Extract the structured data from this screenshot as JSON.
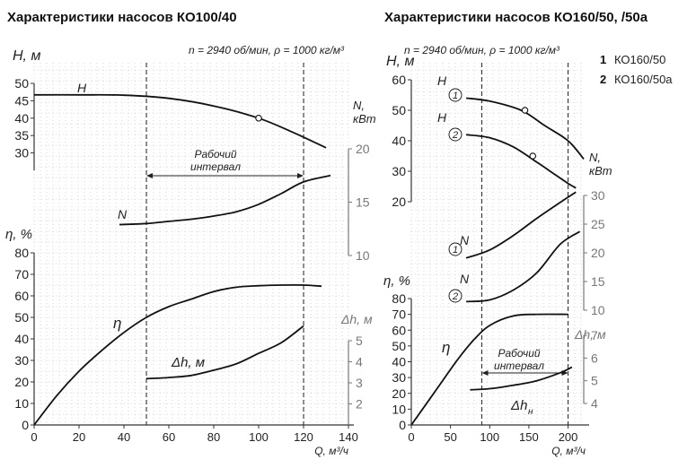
{
  "chart_data": [
    {
      "type": "line",
      "title": "Характеристики насосов КО100/40",
      "conditions": "n = 2940 об/мин, ρ = 1000 кг/м³",
      "xlabel": "Q, м³/ч",
      "xlim": [
        0,
        140
      ],
      "xticks": [
        "0",
        "20",
        "40",
        "60",
        "80",
        "100",
        "120",
        "140"
      ],
      "axes": {
        "H": {
          "label": "H, м",
          "range": [
            25,
            50
          ],
          "ticks": [
            "50",
            "45",
            "40",
            "35",
            "30"
          ]
        },
        "eta": {
          "label": "η, %",
          "range": [
            0,
            80
          ],
          "ticks": [
            "80",
            "70",
            "60",
            "50",
            "40",
            "30",
            "20",
            "10",
            "0"
          ]
        },
        "N": {
          "label": "N, кВт",
          "range": [
            10,
            20
          ],
          "ticks": [
            "20",
            "15",
            "10"
          ]
        },
        "dh": {
          "label": "Δh, м",
          "range": [
            1,
            5
          ],
          "ticks": [
            "5",
            "4",
            "3",
            "2"
          ]
        }
      },
      "working_range": {
        "label": "Рабочий интервал",
        "x": [
          50,
          120
        ]
      },
      "series": [
        {
          "name": "H",
          "axis": "H",
          "x": [
            0,
            20,
            40,
            60,
            80,
            100,
            115,
            130
          ],
          "y": [
            46.7,
            46.7,
            46.6,
            45.7,
            43.5,
            40,
            36,
            31.5
          ],
          "marker": {
            "x": 100,
            "y": 40
          }
        },
        {
          "name": "N",
          "axis": "N",
          "x": [
            38,
            50,
            60,
            70,
            80,
            90,
            100,
            110,
            120,
            132
          ],
          "y": [
            12.9,
            13.0,
            13.2,
            13.4,
            13.7,
            14.1,
            14.8,
            15.8,
            16.9,
            17.5
          ]
        },
        {
          "name": "η",
          "axis": "eta",
          "x": [
            0,
            10,
            20,
            30,
            40,
            50,
            60,
            70,
            80,
            90,
            100,
            110,
            120,
            128
          ],
          "y": [
            0,
            13.5,
            25,
            34.5,
            43,
            50,
            55,
            58.5,
            62,
            64,
            64.7,
            65,
            65,
            64.5
          ]
        },
        {
          "name": "Δh, м",
          "axis": "dh",
          "x": [
            50,
            60,
            70,
            80,
            90,
            100,
            110,
            120
          ],
          "y": [
            3.2,
            3.25,
            3.35,
            3.6,
            3.9,
            4.4,
            4.9,
            5.7
          ]
        }
      ]
    },
    {
      "type": "line",
      "title": "Характеристики насосов КО160/50, /50а",
      "conditions": "n = 2940 об/мин, ρ = 1000 кг/м³",
      "xlabel": "Q, м³/ч",
      "xlim": [
        0,
        220
      ],
      "xticks": [
        "0",
        "50",
        "100",
        "150",
        "200"
      ],
      "legend": [
        {
          "num": "1",
          "name": "КО160/50"
        },
        {
          "num": "2",
          "name": "КО160/50а"
        }
      ],
      "axes": {
        "H": {
          "label": "H, м",
          "range": [
            20,
            60
          ],
          "ticks": [
            "60",
            "50",
            "40",
            "30",
            "20"
          ]
        },
        "eta": {
          "label": "η, %",
          "range": [
            0,
            80
          ],
          "ticks": [
            "80",
            "70",
            "60",
            "50",
            "40",
            "30",
            "20",
            "10",
            "0"
          ]
        },
        "N": {
          "label": "N, кВт",
          "range": [
            10,
            30
          ],
          "ticks": [
            "30",
            "25",
            "20",
            "15",
            "10"
          ]
        },
        "dh": {
          "label": "Δh, м",
          "range": [
            4,
            7
          ],
          "ticks": [
            "7",
            "6",
            "5",
            "4"
          ]
        }
      },
      "working_range": {
        "label": "Рабочий интервал",
        "x": [
          90,
          200
        ]
      },
      "series": [
        {
          "name": "H 1",
          "axis": "H",
          "x": [
            70,
            100,
            140,
            170,
            200,
            220
          ],
          "y": [
            54,
            53,
            50,
            45,
            40,
            34
          ],
          "marker": {
            "x": 145,
            "y": 50
          }
        },
        {
          "name": "H 2",
          "axis": "H",
          "x": [
            70,
            100,
            130,
            160,
            180,
            200,
            210
          ],
          "y": [
            42,
            41,
            38,
            33,
            29.5,
            26,
            24.5
          ],
          "marker": {
            "x": 155,
            "y": 35
          }
        },
        {
          "name": "N 1",
          "axis": "N",
          "x": [
            70,
            100,
            130,
            160,
            190,
            210
          ],
          "y": [
            19.1,
            20.5,
            23,
            26,
            28.8,
            30.6
          ]
        },
        {
          "name": "N 2",
          "axis": "N",
          "x": [
            70,
            100,
            130,
            160,
            190,
            215
          ],
          "y": [
            11.5,
            11.8,
            13.5,
            16.5,
            21.5,
            23.7
          ]
        },
        {
          "name": "η",
          "axis": "eta",
          "x": [
            0,
            20,
            40,
            60,
            80,
            100,
            130,
            160,
            200
          ],
          "y": [
            0,
            14,
            28,
            42,
            54,
            63,
            69,
            70,
            70
          ]
        },
        {
          "name": "Δh",
          "axis": "dh",
          "x": [
            75,
            100,
            130,
            160,
            190,
            205
          ],
          "y": [
            4.6,
            4.65,
            4.8,
            5,
            5.35,
            5.6
          ]
        }
      ]
    }
  ],
  "labels": {
    "left": {
      "H": "H",
      "N": "N",
      "eta": "η",
      "dh": "Δh, м",
      "work1": "Рабочий",
      "work2": "интервал"
    },
    "right": {
      "H1": "H",
      "H2": "H",
      "N1": "N",
      "N2": "N",
      "eta": "η",
      "dh": "Δh",
      "dh_sub": "н",
      "work1": "Рабочий",
      "work2": "интервал",
      "m1": "1",
      "m2": "2",
      "m3": "1",
      "m4": "2"
    }
  },
  "colors": {
    "curve": "#111111",
    "axis": "#333333",
    "gray_axis": "#777777",
    "grid": "#bbbbbb"
  }
}
